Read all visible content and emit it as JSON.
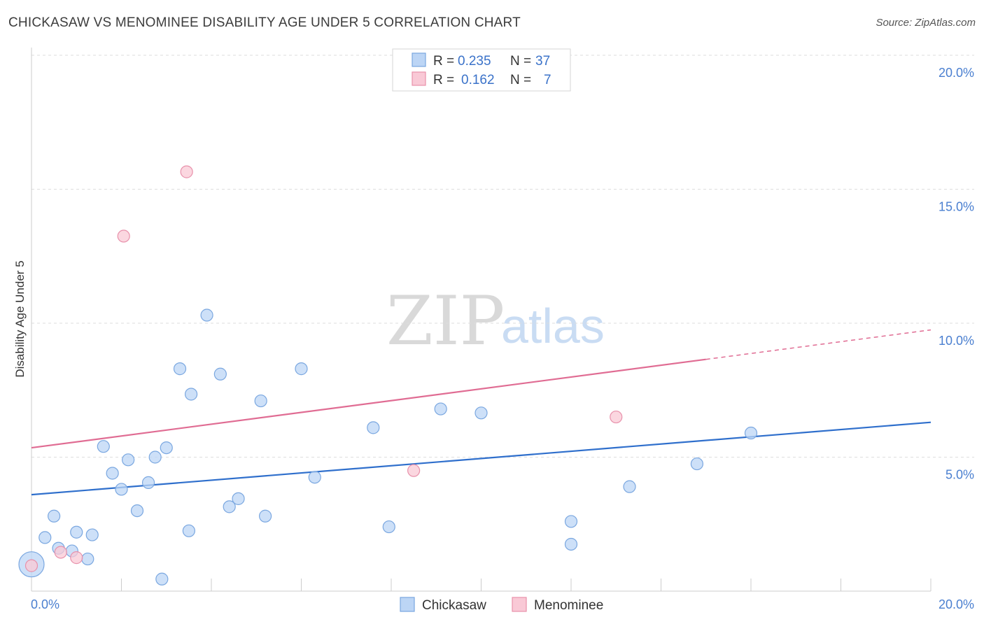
{
  "header": {
    "title": "CHICKASAW VS MENOMINEE DISABILITY AGE UNDER 5 CORRELATION CHART",
    "source": "Source: ZipAtlas.com"
  },
  "watermark": {
    "zip": "ZIP",
    "atlas": "atlas"
  },
  "colors": {
    "chickasaw_fill": "#bcd5f5",
    "chickasaw_stroke": "#7aa7e0",
    "chickasaw_line": "#2f6fcc",
    "menominee_fill": "#f9c9d6",
    "menominee_stroke": "#e891ab",
    "menominee_line": "#e06c93",
    "grid": "#dddddd",
    "tick_text": "#4a7fd0"
  },
  "legend_box": {
    "rows": [
      {
        "r_label": "R =",
        "r_value": "0.235",
        "n_label": "N =",
        "n_value": "37"
      },
      {
        "r_label": "R =",
        "r_value": "0.162",
        "n_label": "N =",
        "n_value": "7"
      }
    ]
  },
  "chart_data": {
    "type": "scatter",
    "title": "CHICKASAW VS MENOMINEE DISABILITY AGE UNDER 5 CORRELATION CHART",
    "xlabel": "",
    "ylabel": "Disability Age Under 5",
    "xlim": [
      0,
      20
    ],
    "ylim": [
      0,
      20
    ],
    "x_tick_labels": [
      "0.0%",
      "20.0%"
    ],
    "y_ticks": [
      5,
      10,
      15,
      20
    ],
    "y_tick_labels": [
      "5.0%",
      "10.0%",
      "15.0%",
      "20.0%"
    ],
    "grid": true,
    "legend_position": "top-center",
    "series": [
      {
        "name": "Chickasaw",
        "r": 0.235,
        "n": 37,
        "trend": {
          "x": [
            0,
            20
          ],
          "y": [
            3.6,
            6.3
          ],
          "dashed_from": null
        },
        "points": [
          {
            "x": 0.0,
            "y": 1.0,
            "big": true
          },
          {
            "x": 0.3,
            "y": 2.0
          },
          {
            "x": 0.5,
            "y": 2.8
          },
          {
            "x": 0.6,
            "y": 1.6
          },
          {
            "x": 0.9,
            "y": 1.5
          },
          {
            "x": 1.0,
            "y": 2.2
          },
          {
            "x": 1.25,
            "y": 1.2
          },
          {
            "x": 1.35,
            "y": 2.1
          },
          {
            "x": 1.6,
            "y": 5.4
          },
          {
            "x": 1.8,
            "y": 4.4
          },
          {
            "x": 2.0,
            "y": 3.8
          },
          {
            "x": 2.15,
            "y": 4.9
          },
          {
            "x": 2.35,
            "y": 3.0
          },
          {
            "x": 2.6,
            "y": 4.05
          },
          {
            "x": 2.75,
            "y": 5.0
          },
          {
            "x": 2.9,
            "y": 0.45
          },
          {
            "x": 3.0,
            "y": 5.35
          },
          {
            "x": 3.3,
            "y": 8.3
          },
          {
            "x": 3.5,
            "y": 2.25
          },
          {
            "x": 3.55,
            "y": 7.35
          },
          {
            "x": 3.9,
            "y": 10.3
          },
          {
            "x": 4.2,
            "y": 8.1
          },
          {
            "x": 4.4,
            "y": 3.15
          },
          {
            "x": 4.6,
            "y": 3.45
          },
          {
            "x": 5.1,
            "y": 7.1
          },
          {
            "x": 5.2,
            "y": 2.8
          },
          {
            "x": 6.0,
            "y": 8.3
          },
          {
            "x": 6.3,
            "y": 4.25
          },
          {
            "x": 7.6,
            "y": 6.1
          },
          {
            "x": 7.95,
            "y": 2.4
          },
          {
            "x": 9.1,
            "y": 6.8
          },
          {
            "x": 10.0,
            "y": 6.65
          },
          {
            "x": 12.0,
            "y": 2.6
          },
          {
            "x": 12.0,
            "y": 1.75
          },
          {
            "x": 13.3,
            "y": 3.9
          },
          {
            "x": 14.8,
            "y": 4.75
          },
          {
            "x": 16.0,
            "y": 5.9
          }
        ]
      },
      {
        "name": "Menominee",
        "r": 0.162,
        "n": 7,
        "trend": {
          "x": [
            0,
            20
          ],
          "y": [
            5.35,
            9.75
          ],
          "dashed_from": 15.0
        },
        "points": [
          {
            "x": 0.0,
            "y": 0.95
          },
          {
            "x": 0.65,
            "y": 1.45
          },
          {
            "x": 1.0,
            "y": 1.25
          },
          {
            "x": 2.05,
            "y": 13.25
          },
          {
            "x": 3.45,
            "y": 15.65
          },
          {
            "x": 8.5,
            "y": 4.5
          },
          {
            "x": 13.0,
            "y": 6.5
          }
        ]
      }
    ]
  }
}
